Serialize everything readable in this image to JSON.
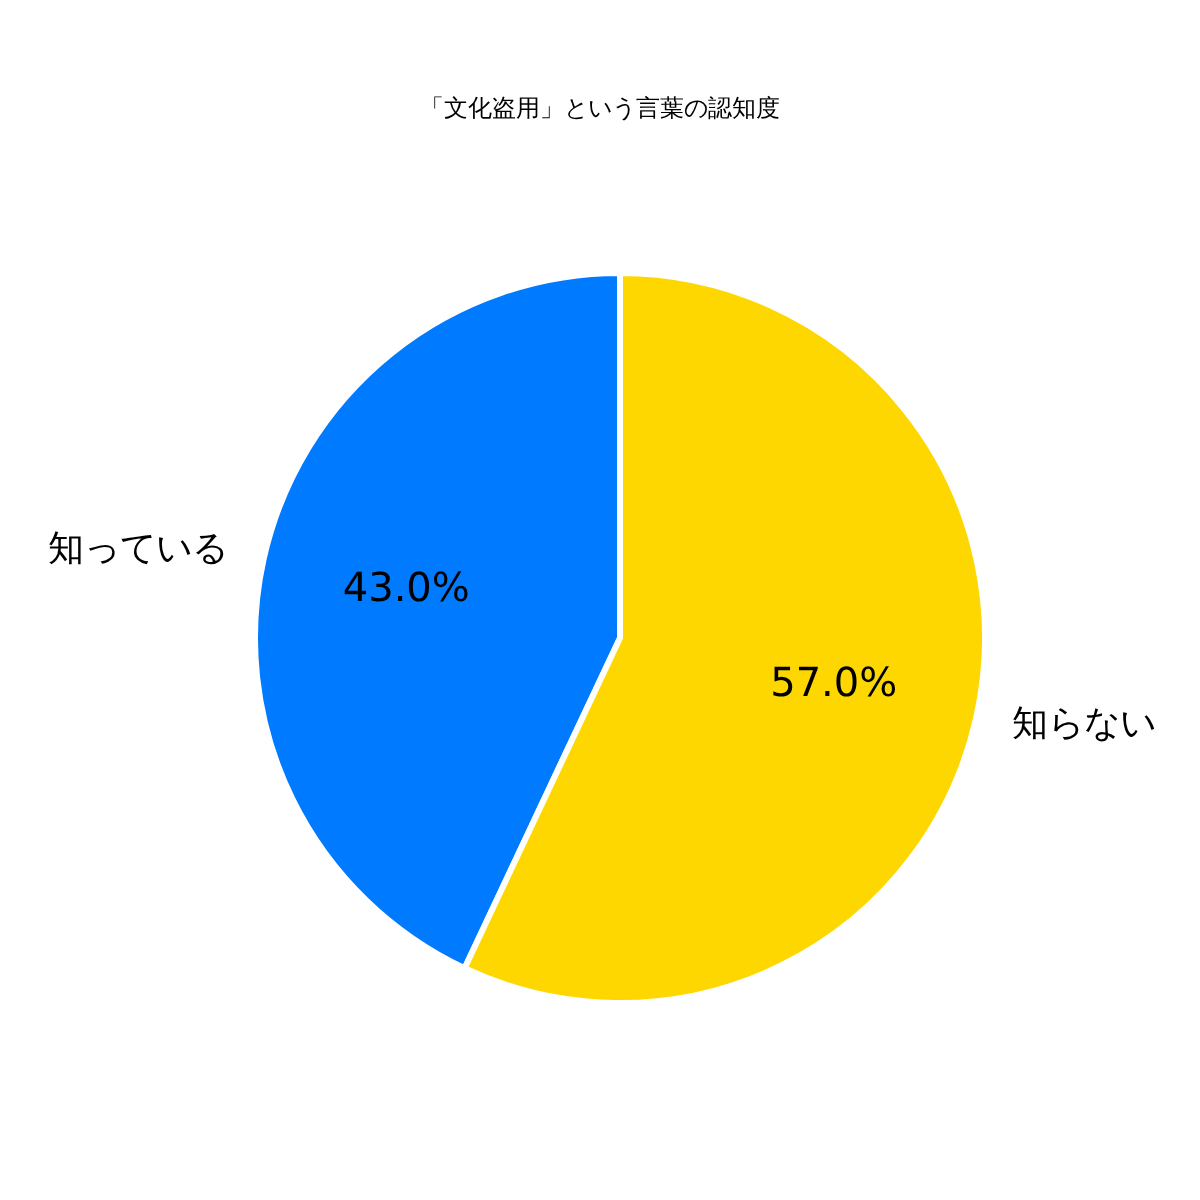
{
  "chart_data": {
    "type": "pie",
    "title": "「文化盗用」という言葉の認知度",
    "categories": [
      "知っている",
      "知らない"
    ],
    "values": [
      43,
      57
    ],
    "colors": [
      "#007bff",
      "#ffd700"
    ],
    "value_labels": [
      "43.0%",
      "57.0%"
    ],
    "legend": false
  }
}
